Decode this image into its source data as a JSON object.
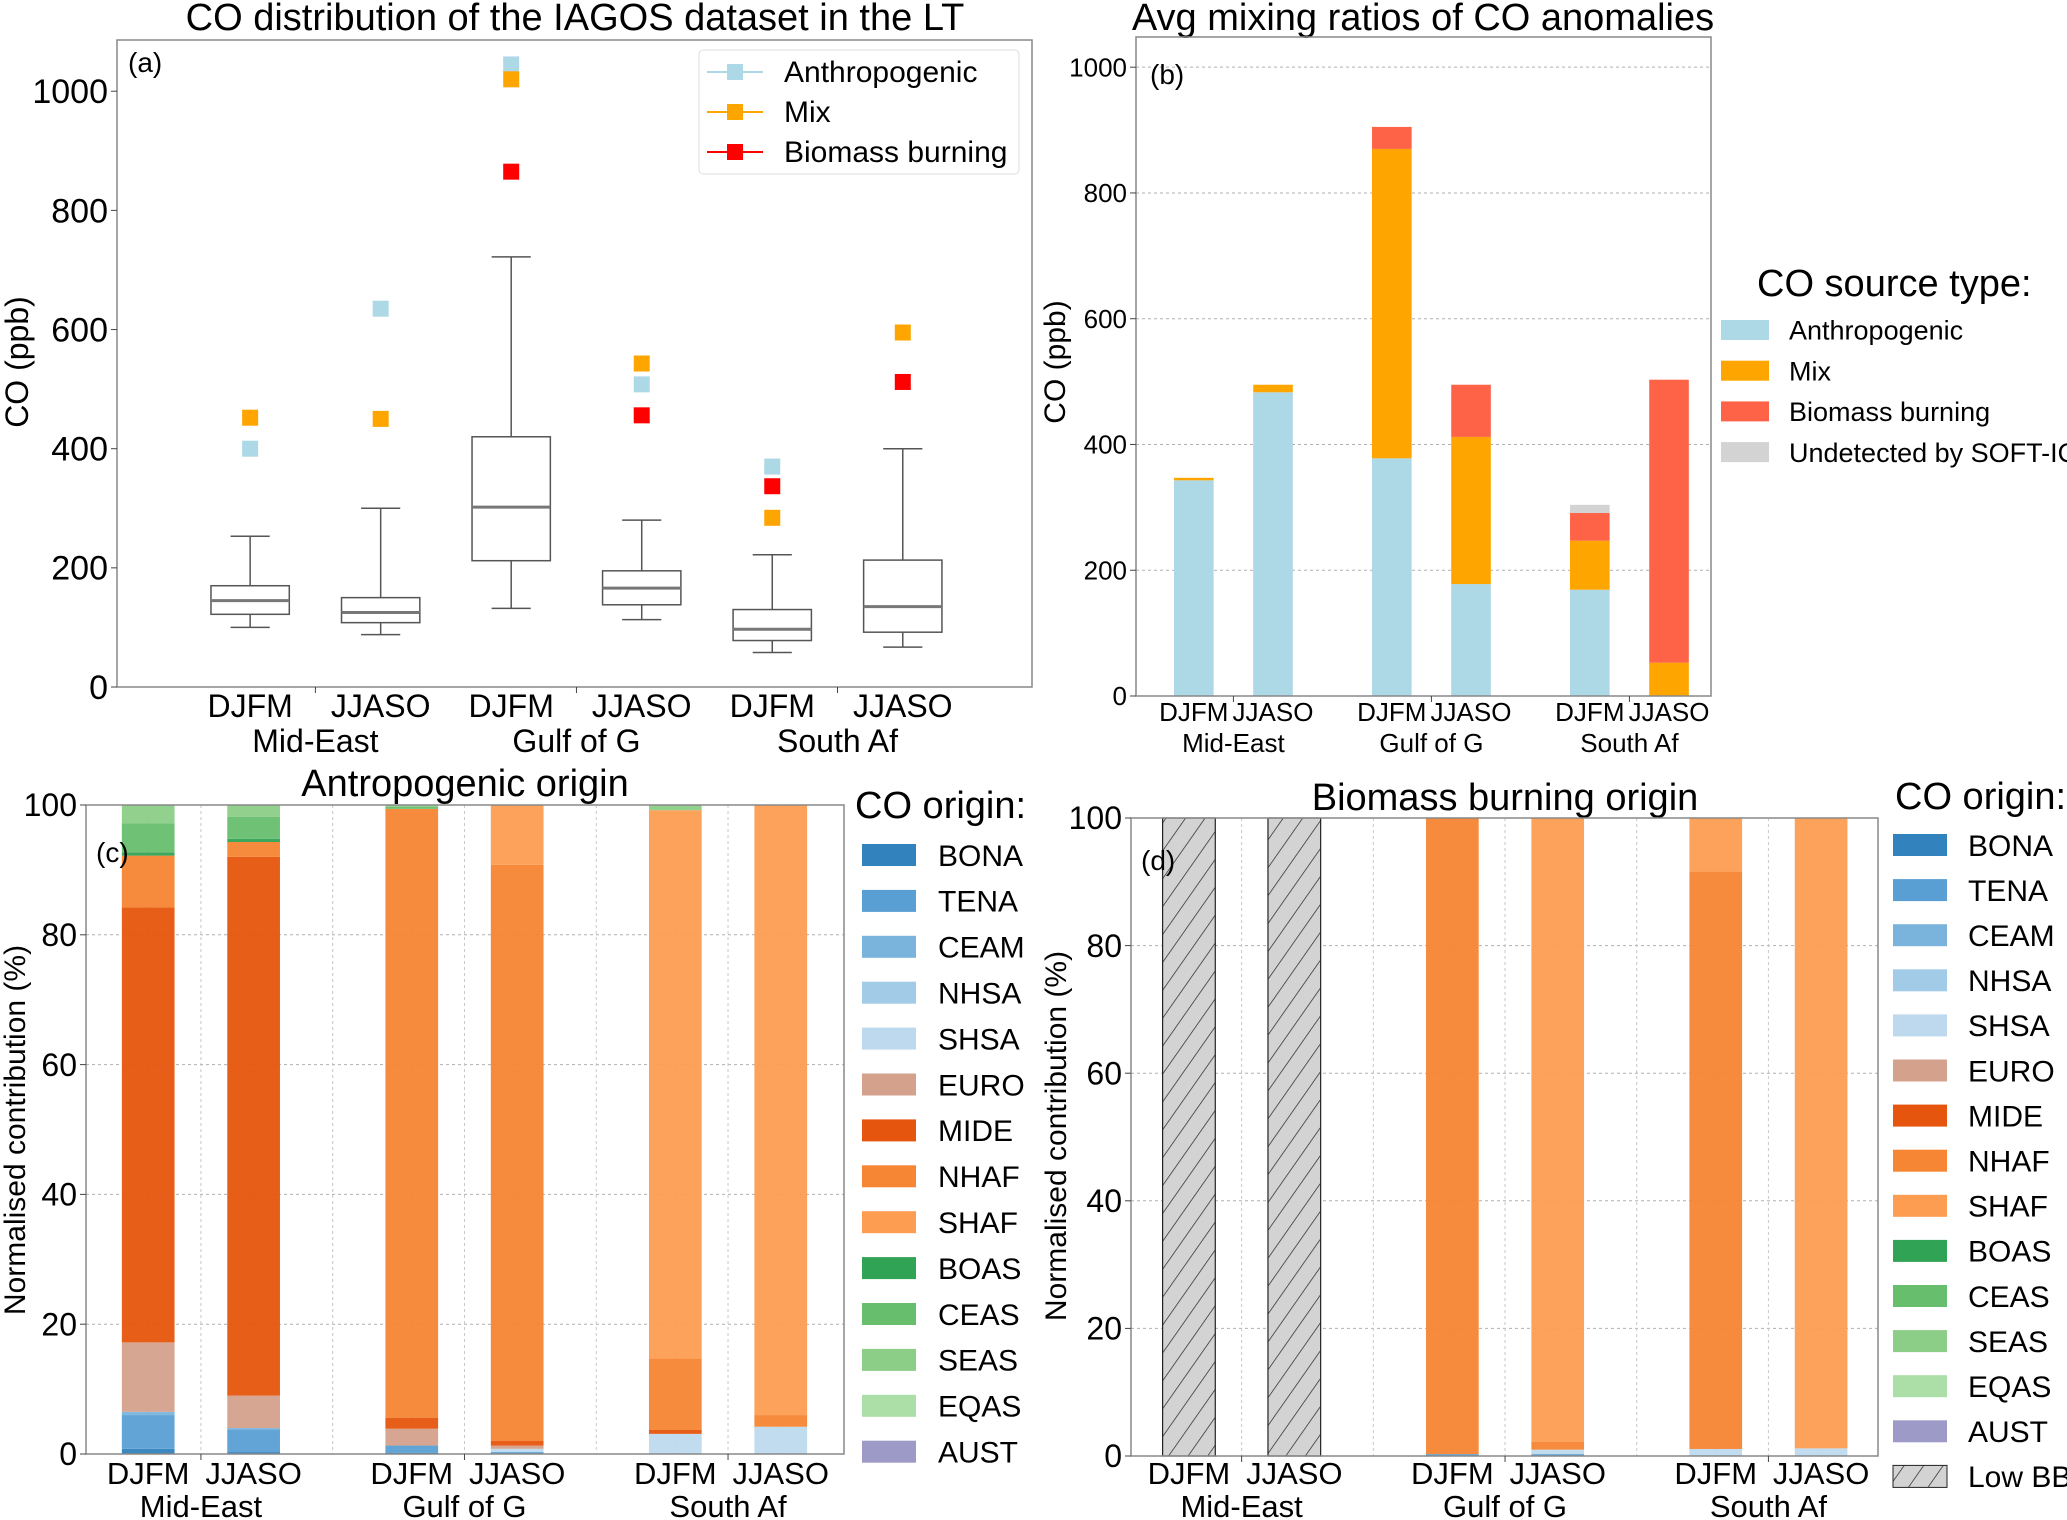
{
  "chart_data": [
    {
      "panel_label": "(a)",
      "type": "box",
      "title": "CO distribution of the IAGOS dataset in the LT",
      "ylabel": "CO (ppb)",
      "ylim": [
        0,
        1086
      ],
      "yticks": [
        0,
        200,
        400,
        600,
        800,
        1000
      ],
      "categories": [
        "DJFM",
        "JJASO",
        "DJFM",
        "JJASO",
        "DJFM",
        "JJASO"
      ],
      "groups": [
        "Mid-East",
        "Gulf of G",
        "South Af"
      ],
      "boxes": [
        {
          "whisker_low": 100,
          "q1": 122,
          "median": 145,
          "q3": 170,
          "whisker_high": 253
        },
        {
          "whisker_low": 88,
          "q1": 108,
          "median": 125,
          "q3": 150,
          "whisker_high": 300
        },
        {
          "whisker_low": 132,
          "q1": 212,
          "median": 302,
          "q3": 420,
          "whisker_high": 722
        },
        {
          "whisker_low": 113,
          "q1": 138,
          "median": 166,
          "q3": 195,
          "whisker_high": 280
        },
        {
          "whisker_low": 58,
          "q1": 78,
          "median": 97,
          "q3": 130,
          "whisker_high": 222
        },
        {
          "whisker_low": 67,
          "q1": 92,
          "median": 135,
          "q3": 213,
          "whisker_high": 400
        }
      ],
      "markers": [
        {
          "name": "Anthropogenic",
          "color": "#add8e6",
          "values": [
            400,
            635,
            1045,
            508,
            370,
            null
          ]
        },
        {
          "name": "Mix",
          "color": "#ffa500",
          "values": [
            452,
            450,
            1020,
            543,
            284,
            595
          ]
        },
        {
          "name": "Biomass burning",
          "color": "#ff0000",
          "values": [
            null,
            null,
            865,
            456,
            337,
            512
          ]
        }
      ],
      "legend_position": "top-right",
      "grid": false
    },
    {
      "panel_label": "(b)",
      "type": "stacked-bar",
      "title": "Avg mixing ratios of CO anomalies",
      "ylabel": "CO (ppb)",
      "ylim": [
        0,
        1048
      ],
      "yticks": [
        0,
        200,
        400,
        600,
        800,
        1000
      ],
      "categories": [
        "DJFM",
        "JJASO",
        "DJFM",
        "JJASO",
        "DJFM",
        "JJASO"
      ],
      "groups": [
        "Mid-East",
        "Gulf of G",
        "South Af"
      ],
      "legend_title": "CO source type:",
      "series": [
        {
          "name": "Anthropogenic",
          "color": "#add8e6",
          "values": [
            343,
            483,
            378,
            178,
            169,
            0
          ]
        },
        {
          "name": "Mix",
          "color": "#ffa500",
          "values": [
            4,
            12,
            492,
            234,
            78,
            53
          ]
        },
        {
          "name": "Biomass burning",
          "color": "#ff6347",
          "values": [
            0,
            0,
            35,
            83,
            44,
            450
          ]
        },
        {
          "name": "Undetected by SOFT-IO",
          "color": "#d3d3d3",
          "values": [
            0,
            0,
            0,
            0,
            13,
            0
          ]
        }
      ],
      "legend_position": "right",
      "grid": true
    },
    {
      "panel_label": "(c)",
      "type": "stacked-bar",
      "title": "Antropogenic origin",
      "ylabel": "Normalised contribution (%)",
      "ylim": [
        0,
        100
      ],
      "yticks": [
        0,
        20,
        40,
        60,
        80,
        100
      ],
      "categories": [
        "DJFM",
        "JJASO",
        "DJFM",
        "JJASO",
        "DJFM",
        "JJASO"
      ],
      "groups": [
        "Mid-East",
        "Gulf of G",
        "South Af"
      ],
      "legend_title": "CO origin:",
      "series": [
        {
          "name": "BONA",
          "color": "#3182bd",
          "values": [
            0.8,
            0.3,
            0.2,
            0,
            0,
            0
          ]
        },
        {
          "name": "TENA",
          "color": "#5a9fd4",
          "values": [
            5.2,
            3.5,
            1.1,
            0.3,
            0,
            0
          ]
        },
        {
          "name": "CEAM",
          "color": "#7ab4dc",
          "values": [
            0.5,
            0.2,
            0,
            0,
            0,
            0
          ]
        },
        {
          "name": "NHSA",
          "color": "#a1cbe6",
          "values": [
            0,
            0,
            0,
            0,
            0,
            0
          ]
        },
        {
          "name": "SHSA",
          "color": "#bed9ee",
          "values": [
            0,
            0,
            0,
            0.5,
            3.1,
            4.2
          ]
        },
        {
          "name": "EURO",
          "color": "#d4a18c",
          "values": [
            10.7,
            5.0,
            2.6,
            0.5,
            0,
            0
          ]
        },
        {
          "name": "MIDE",
          "color": "#e6550d",
          "values": [
            67.0,
            83.0,
            1.7,
            0.7,
            0.6,
            0
          ]
        },
        {
          "name": "NHAF",
          "color": "#f68534",
          "values": [
            8.0,
            2.3,
            93.8,
            88.8,
            11.0,
            1.8
          ]
        },
        {
          "name": "SHAF",
          "color": "#fd9d51",
          "values": [
            0,
            0,
            0,
            9.2,
            84.5,
            94.0
          ]
        },
        {
          "name": "BOAS",
          "color": "#31a354",
          "values": [
            0.5,
            0.5,
            0,
            0,
            0,
            0
          ]
        },
        {
          "name": "CEAS",
          "color": "#67bf6e",
          "values": [
            4.5,
            3.4,
            0.3,
            0,
            0,
            0
          ]
        },
        {
          "name": "SEAS",
          "color": "#8ccd87",
          "values": [
            2.8,
            1.8,
            0.3,
            0,
            0.8,
            0
          ]
        },
        {
          "name": "EQAS",
          "color": "#acdea8",
          "values": [
            0,
            0,
            0,
            0,
            0,
            0
          ]
        },
        {
          "name": "AUST",
          "color": "#9e9ac8",
          "values": [
            0,
            0,
            0,
            0,
            0,
            0
          ]
        }
      ],
      "legend_position": "right",
      "grid": true
    },
    {
      "panel_label": "(d)",
      "type": "stacked-bar",
      "title": "Biomass burning origin",
      "ylabel": "Normalised contribution (%)",
      "ylim": [
        0,
        100
      ],
      "yticks": [
        0,
        20,
        40,
        60,
        80,
        100
      ],
      "categories": [
        "DJFM",
        "JJASO",
        "DJFM",
        "JJASO",
        "DJFM",
        "JJASO"
      ],
      "groups": [
        "Mid-East",
        "Gulf of G",
        "South Af"
      ],
      "legend_title": "CO origin:",
      "series": [
        {
          "name": "BONA",
          "color": "#3182bd",
          "values": [
            0,
            0,
            0,
            0,
            0,
            0
          ]
        },
        {
          "name": "TENA",
          "color": "#5a9fd4",
          "values": [
            0,
            0,
            0.3,
            0.3,
            0,
            0
          ]
        },
        {
          "name": "CEAM",
          "color": "#7ab4dc",
          "values": [
            0,
            0,
            0,
            0,
            0,
            0
          ]
        },
        {
          "name": "NHSA",
          "color": "#a1cbe6",
          "values": [
            0,
            0,
            0,
            0,
            0,
            0
          ]
        },
        {
          "name": "SHSA",
          "color": "#bed9ee",
          "values": [
            0,
            0,
            0,
            0.7,
            1.1,
            1.2
          ]
        },
        {
          "name": "EURO",
          "color": "#d4a18c",
          "values": [
            0,
            0,
            0,
            0,
            0,
            0
          ]
        },
        {
          "name": "MIDE",
          "color": "#e6550d",
          "values": [
            0,
            0,
            0,
            0,
            0,
            0
          ]
        },
        {
          "name": "NHAF",
          "color": "#f68534",
          "values": [
            0,
            0,
            99.7,
            1.2,
            90.5,
            0
          ]
        },
        {
          "name": "SHAF",
          "color": "#fd9d51",
          "values": [
            0,
            0,
            0,
            97.8,
            8.4,
            98.8
          ]
        },
        {
          "name": "BOAS",
          "color": "#31a354",
          "values": [
            0,
            0,
            0,
            0,
            0,
            0
          ]
        },
        {
          "name": "CEAS",
          "color": "#67bf6e",
          "values": [
            0,
            0,
            0,
            0,
            0,
            0
          ]
        },
        {
          "name": "SEAS",
          "color": "#8ccd87",
          "values": [
            0,
            0,
            0,
            0,
            0,
            0
          ]
        },
        {
          "name": "EQAS",
          "color": "#acdea8",
          "values": [
            0,
            0,
            0,
            0,
            0,
            0
          ]
        },
        {
          "name": "AUST",
          "color": "#9e9ac8",
          "values": [
            0,
            0,
            0,
            0,
            0,
            0
          ]
        },
        {
          "name": "Low BB",
          "color": "#d3d3d3",
          "hatch": "diagonal",
          "values": [
            100,
            100,
            0,
            0,
            0,
            0
          ]
        }
      ],
      "legend_position": "right",
      "grid": true
    }
  ]
}
